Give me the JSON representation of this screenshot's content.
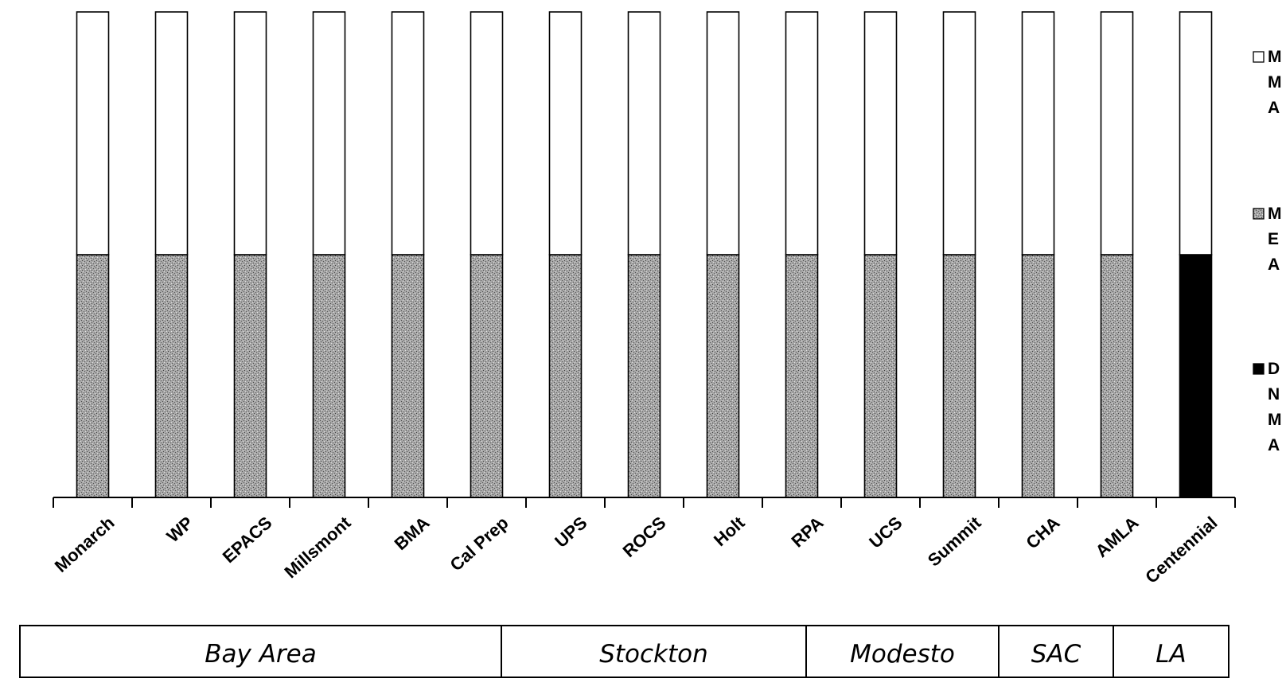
{
  "chart_data": {
    "type": "bar",
    "stacked": true,
    "categories": [
      "Monarch",
      "WP",
      "EPACS",
      "Millsmont",
      "BMA",
      "Cal Prep",
      "UPS",
      "ROCS",
      "Holt",
      "RPA",
      "UCS",
      "Summit",
      "CHA",
      "AMLA",
      "Centennial"
    ],
    "series": [
      {
        "name": "D N M A",
        "fill": "solid-black",
        "values": [
          0,
          0,
          0,
          0,
          0,
          0,
          0,
          0,
          0,
          0,
          0,
          0,
          0,
          0,
          1
        ]
      },
      {
        "name": "M E A",
        "fill": "dark-stipple",
        "values": [
          1,
          1,
          1,
          1,
          1,
          1,
          1,
          1,
          1,
          1,
          1,
          1,
          1,
          1,
          0
        ]
      },
      {
        "name": "M M A",
        "fill": "white",
        "values": [
          1,
          1,
          1,
          1,
          1,
          1,
          1,
          1,
          1,
          1,
          1,
          1,
          1,
          1,
          1
        ]
      }
    ],
    "ylim": [
      0,
      2
    ],
    "grid": false,
    "legend_position": "right",
    "regions": [
      {
        "label": "Bay Area",
        "count": 6
      },
      {
        "label": "Stockton",
        "count": 4
      },
      {
        "label": "Modesto",
        "count": 2
      },
      {
        "label": "SAC",
        "count": 1
      },
      {
        "label": "LA",
        "count": 2
      }
    ],
    "colors": {
      "axis": "#000000",
      "bar_outline": "#000000",
      "solid": "#000000",
      "stipple_bg": "#a8a8a8"
    }
  }
}
